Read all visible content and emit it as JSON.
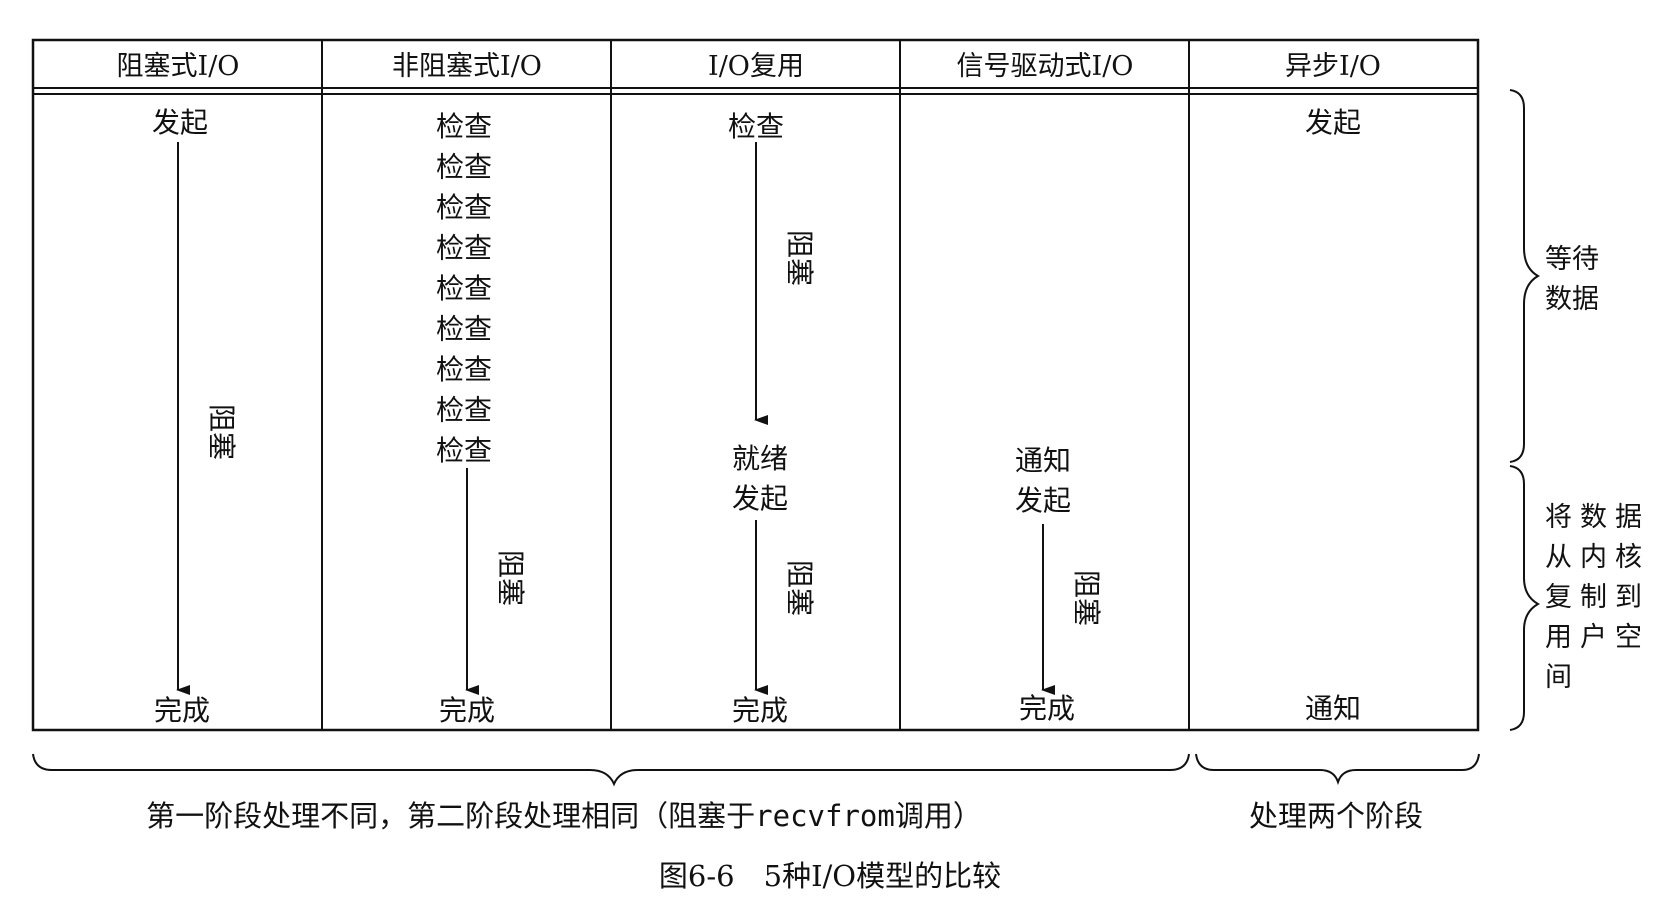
{
  "headers": [
    "阻塞式I/O",
    "非阻塞式I/O",
    "I/O复用",
    "信号驱动式I/O",
    "异步I/O"
  ],
  "labels": {
    "initiate": "发起",
    "check": "检查",
    "blocked": "阻塞",
    "complete": "完成",
    "ready": "就绪",
    "notify": "通知"
  },
  "nonblocking_check_count": 9,
  "right_brace_labels": {
    "wait_data": [
      "等待",
      "数据"
    ],
    "copy_data": [
      "将数据",
      "从内核",
      "复制到",
      "用户空",
      "间"
    ]
  },
  "bottom_brace_labels": {
    "first_four": {
      "prefix": "第一阶段处理不同，第二阶段处理相同（阻塞于",
      "code": "recvfrom",
      "suffix": "调用）"
    },
    "async": "处理两个阶段"
  },
  "figure_caption": "图6-6　5种I/O模型的比较"
}
